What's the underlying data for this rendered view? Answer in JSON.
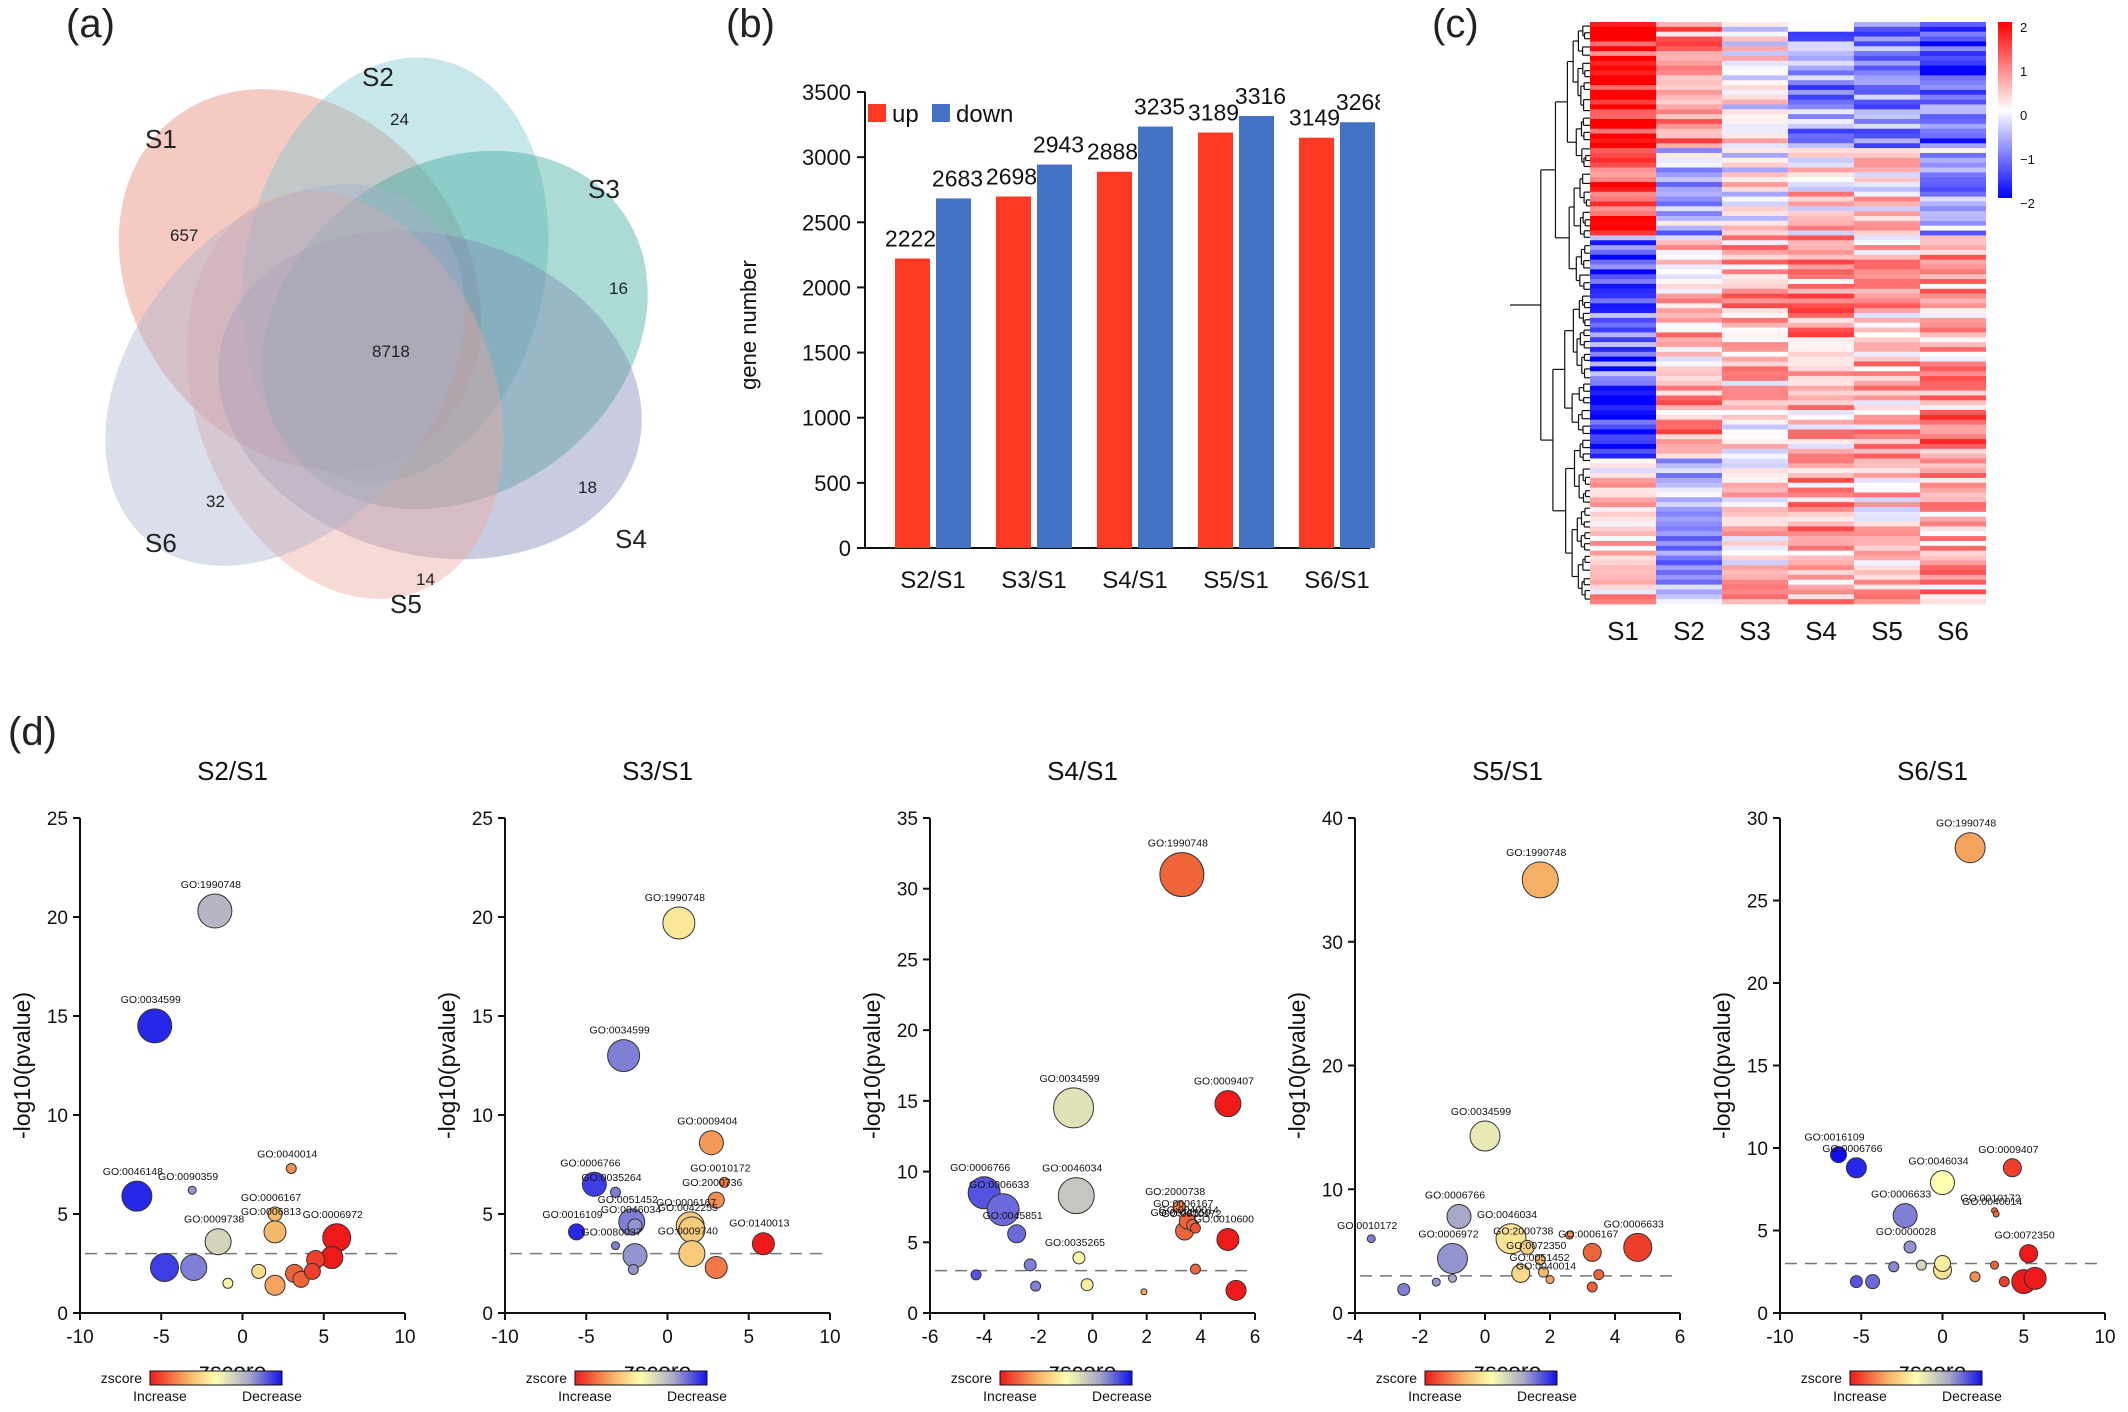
{
  "panel_labels": {
    "a": "(a)",
    "b": "(b)",
    "c": "(c)",
    "d": "(d)"
  },
  "venn": {
    "sets": [
      "S1",
      "S2",
      "S3",
      "S4",
      "S5",
      "S6"
    ],
    "colors": [
      "#e8806f",
      "#7cc6d0",
      "#3aa99a",
      "#7f86b5",
      "#eca89a",
      "#aab0cf"
    ],
    "counts": {
      "S1_only": "657",
      "S2_only": "24",
      "S3_only": "16",
      "S4_only": "18",
      "S5_only": "14",
      "S6_only": "32",
      "all": "8718"
    }
  },
  "bar": {
    "ylabel": "gene number",
    "legend_up": "up",
    "legend_down": "down",
    "color_up": "#ff3a24",
    "color_down": "#4472c4"
  },
  "heatmap": {
    "columns": [
      "S1",
      "S2",
      "S3",
      "S4",
      "S5",
      "S6"
    ],
    "legend_ticks": [
      "2",
      "1",
      "0",
      "−1",
      "−2"
    ],
    "color_high": "#ff0000",
    "color_mid": "#ffffff",
    "color_low": "#0000ff"
  },
  "colorbar": {
    "label": "zscore",
    "left": "Increase",
    "right": "Decrease"
  },
  "chart_data": [
    {
      "type": "bar",
      "title": "",
      "ylabel": "gene number",
      "categories": [
        "S2/S1",
        "S3/S1",
        "S4/S1",
        "S5/S1",
        "S6/S1"
      ],
      "series": [
        {
          "name": "up",
          "values": [
            2222,
            2698,
            2888,
            3189,
            3149
          ]
        },
        {
          "name": "down",
          "values": [
            2683,
            2943,
            3235,
            3316,
            3268
          ]
        }
      ],
      "ylim": [
        0,
        3500
      ],
      "yticks": [
        0,
        500,
        1000,
        1500,
        2000,
        2500,
        3000,
        3500
      ]
    },
    {
      "type": "scatter",
      "title": "S2/S1",
      "xlabel": "zscore",
      "ylabel": "-log10(pvalue)",
      "xlim": [
        -10,
        10
      ],
      "ylim": [
        0,
        25
      ],
      "xticks": [
        -10,
        -5,
        0,
        5,
        10
      ],
      "yticks": [
        0,
        5,
        10,
        15,
        20,
        25
      ],
      "threshold": 3,
      "points": [
        {
          "x": -1.7,
          "y": 20.3,
          "z": -1.7,
          "s": 17,
          "label": "GO:1990748"
        },
        {
          "x": -5.4,
          "y": 14.5,
          "z": -8.0,
          "s": 17,
          "label": "GO:0034599"
        },
        {
          "x": -6.5,
          "y": 5.9,
          "z": -8.0,
          "s": 15,
          "label": "GO:0046148"
        },
        {
          "x": -3.1,
          "y": 6.2,
          "z": -3.0,
          "s": 4,
          "label": "GO:0090359"
        },
        {
          "x": 3.0,
          "y": 7.3,
          "z": 3.0,
          "s": 5,
          "label": "GO:0040014"
        },
        {
          "x": 2.0,
          "y": 5.0,
          "z": 2.0,
          "s": 7,
          "label": "GO:0006167"
        },
        {
          "x": -1.5,
          "y": 3.6,
          "z": -1.0,
          "s": 13,
          "label": "GO:0009738"
        },
        {
          "x": 2.0,
          "y": 4.1,
          "z": 2.0,
          "s": 11,
          "label": "GO:0006813"
        },
        {
          "x": 5.8,
          "y": 3.8,
          "z": 6.0,
          "s": 14,
          "label": "GO:0006972"
        },
        {
          "x": -4.8,
          "y": 2.3,
          "z": -7.0,
          "s": 14,
          "label": ""
        },
        {
          "x": -3.0,
          "y": 2.3,
          "z": -4.0,
          "s": 13,
          "label": ""
        },
        {
          "x": -0.9,
          "y": 1.5,
          "z": 0.3,
          "s": 5,
          "label": ""
        },
        {
          "x": 1.0,
          "y": 2.1,
          "z": 1.0,
          "s": 7,
          "label": ""
        },
        {
          "x": 2.0,
          "y": 1.4,
          "z": 2.5,
          "s": 10,
          "label": ""
        },
        {
          "x": 3.2,
          "y": 2.0,
          "z": 4.0,
          "s": 9,
          "label": ""
        },
        {
          "x": 3.6,
          "y": 1.7,
          "z": 4.0,
          "s": 8,
          "label": ""
        },
        {
          "x": 4.3,
          "y": 2.1,
          "z": 5.0,
          "s": 8,
          "label": ""
        },
        {
          "x": 4.5,
          "y": 2.7,
          "z": 5.0,
          "s": 9,
          "label": ""
        },
        {
          "x": 5.5,
          "y": 2.8,
          "z": 6.0,
          "s": 11,
          "label": ""
        }
      ]
    },
    {
      "type": "scatter",
      "title": "S3/S1",
      "xlabel": "zscore",
      "ylabel": "-log10(pvalue)",
      "xlim": [
        -10,
        10
      ],
      "ylim": [
        0,
        25
      ],
      "xticks": [
        -10,
        -5,
        0,
        5,
        10
      ],
      "yticks": [
        0,
        5,
        10,
        15,
        20,
        25
      ],
      "threshold": 3,
      "points": [
        {
          "x": 0.7,
          "y": 19.7,
          "z": 0.7,
          "s": 16,
          "label": "GO:1990748"
        },
        {
          "x": -2.7,
          "y": 13.0,
          "z": -4.0,
          "s": 16,
          "label": "GO:0034599"
        },
        {
          "x": 2.7,
          "y": 8.6,
          "z": 2.7,
          "s": 12,
          "label": "GO:0009404"
        },
        {
          "x": -4.5,
          "y": 6.5,
          "z": -7.0,
          "s": 12,
          "label": "GO:0006766"
        },
        {
          "x": -3.2,
          "y": 6.1,
          "z": -4.0,
          "s": 5,
          "label": "GO:0035264"
        },
        {
          "x": -2.2,
          "y": 4.6,
          "z": -4.0,
          "s": 13,
          "label": "GO:0051452"
        },
        {
          "x": -2.0,
          "y": 4.4,
          "z": -3.0,
          "s": 7,
          "label": "GO:0046034"
        },
        {
          "x": 3.5,
          "y": 6.6,
          "z": 3.5,
          "s": 5,
          "label": "GO:0010172"
        },
        {
          "x": 3.0,
          "y": 5.7,
          "z": 3.0,
          "s": 8,
          "label": "GO:2000736"
        },
        {
          "x": -5.6,
          "y": 4.1,
          "z": -8.0,
          "s": 8,
          "label": "GO:0016109"
        },
        {
          "x": -3.2,
          "y": 3.4,
          "z": -4.0,
          "s": 4,
          "label": "GO:0080037"
        },
        {
          "x": 1.4,
          "y": 4.4,
          "z": 1.4,
          "s": 14,
          "label": "GO:0006167"
        },
        {
          "x": 1.5,
          "y": 4.2,
          "z": 1.5,
          "s": 13,
          "label": "GO:0042255"
        },
        {
          "x": 1.5,
          "y": 3.0,
          "z": 1.5,
          "s": 13,
          "label": "GO:0009740"
        },
        {
          "x": 5.9,
          "y": 3.5,
          "z": 6.0,
          "s": 11,
          "label": "GO:0140013"
        },
        {
          "x": -2.0,
          "y": 2.9,
          "z": -3.0,
          "s": 12,
          "label": ""
        },
        {
          "x": -2.1,
          "y": 2.2,
          "z": -3.0,
          "s": 5,
          "label": ""
        },
        {
          "x": 3.0,
          "y": 2.3,
          "z": 3.5,
          "s": 11,
          "label": ""
        }
      ]
    },
    {
      "type": "scatter",
      "title": "S4/S1",
      "xlabel": "zscore",
      "ylabel": "-log10(pvalue)",
      "xlim": [
        -6,
        6
      ],
      "ylim": [
        0,
        35
      ],
      "xticks": [
        -6,
        -4,
        -2,
        0,
        2,
        4,
        6
      ],
      "yticks": [
        0,
        5,
        10,
        15,
        20,
        25,
        30,
        35
      ],
      "threshold": 3,
      "points": [
        {
          "x": 3.3,
          "y": 31.0,
          "z": 4.0,
          "s": 22,
          "label": "GO:1990748"
        },
        {
          "x": -0.7,
          "y": 14.5,
          "z": -0.7,
          "s": 20,
          "label": "GO:0034599"
        },
        {
          "x": 5.0,
          "y": 14.8,
          "z": 6.0,
          "s": 13,
          "label": "GO:0009407"
        },
        {
          "x": -4.0,
          "y": 8.5,
          "z": -6.0,
          "s": 16,
          "label": "GO:0006766"
        },
        {
          "x": -3.3,
          "y": 7.3,
          "z": -5.0,
          "s": 16,
          "label": "GO:0006633"
        },
        {
          "x": -2.8,
          "y": 5.6,
          "z": -5.0,
          "s": 9,
          "label": "GO:0045851"
        },
        {
          "x": -0.6,
          "y": 8.3,
          "z": -1.3,
          "s": 18,
          "label": "GO:0046034"
        },
        {
          "x": -0.5,
          "y": 3.9,
          "z": 0.0,
          "s": 6,
          "label": "GO:0035265"
        },
        {
          "x": 3.2,
          "y": 7.5,
          "z": 3.2,
          "s": 6,
          "label": "GO:2000738"
        },
        {
          "x": 3.5,
          "y": 6.5,
          "z": 4.0,
          "s": 8,
          "label": "GO:0006167"
        },
        {
          "x": 3.7,
          "y": 6.2,
          "z": 4.0,
          "s": 6,
          "label": "GO:0040014"
        },
        {
          "x": 3.8,
          "y": 6.0,
          "z": 4.5,
          "s": 5,
          "label": "GO:0010172"
        },
        {
          "x": 3.4,
          "y": 5.8,
          "z": 4.0,
          "s": 9,
          "label": "GO:0072350"
        },
        {
          "x": 5.0,
          "y": 5.2,
          "z": 6.0,
          "s": 11,
          "label": "GO:0010600"
        },
        {
          "x": -2.3,
          "y": 3.4,
          "z": -4.0,
          "s": 6,
          "label": ""
        },
        {
          "x": -4.3,
          "y": 2.7,
          "z": -6.0,
          "s": 5,
          "label": ""
        },
        {
          "x": -2.1,
          "y": 1.9,
          "z": -4.0,
          "s": 5,
          "label": ""
        },
        {
          "x": -0.2,
          "y": 2.0,
          "z": 0.5,
          "s": 6,
          "label": ""
        },
        {
          "x": 1.9,
          "y": 1.5,
          "z": 2.5,
          "s": 3,
          "label": ""
        },
        {
          "x": 3.8,
          "y": 3.1,
          "z": 4.0,
          "s": 5,
          "label": ""
        },
        {
          "x": 5.3,
          "y": 1.6,
          "z": 6.0,
          "s": 10,
          "label": ""
        }
      ]
    },
    {
      "type": "scatter",
      "title": "S5/S1",
      "xlabel": "zscore",
      "ylabel": "-log10(pvalue)",
      "xlim": [
        -4,
        6
      ],
      "ylim": [
        0,
        40
      ],
      "xticks": [
        -4,
        -2,
        0,
        2,
        4,
        6
      ],
      "yticks": [
        0,
        10,
        20,
        30,
        40
      ],
      "threshold": 3,
      "points": [
        {
          "x": 1.7,
          "y": 35.0,
          "z": 2.2,
          "s": 18,
          "label": "GO:1990748"
        },
        {
          "x": 0.0,
          "y": 14.3,
          "z": -0.5,
          "s": 15,
          "label": "GO:0034599"
        },
        {
          "x": -0.8,
          "y": 7.8,
          "z": -2.0,
          "s": 12,
          "label": "GO:0006766"
        },
        {
          "x": -1.0,
          "y": 4.4,
          "z": -3.0,
          "s": 15,
          "label": "GO:0006972"
        },
        {
          "x": -3.5,
          "y": 6.0,
          "z": -4.0,
          "s": 4,
          "label": "GO:0010172"
        },
        {
          "x": 0.8,
          "y": 6.0,
          "z": 0.8,
          "s": 15,
          "label": "GO:0046034"
        },
        {
          "x": 1.3,
          "y": 5.3,
          "z": 1.3,
          "s": 7,
          "label": "GO:2000738"
        },
        {
          "x": 1.7,
          "y": 4.3,
          "z": 1.7,
          "s": 5,
          "label": "GO:0072350"
        },
        {
          "x": 1.8,
          "y": 3.3,
          "z": 2.0,
          "s": 5,
          "label": "GO:0051452"
        },
        {
          "x": 2.0,
          "y": 2.7,
          "z": 2.5,
          "s": 4,
          "label": "GO:0040014"
        },
        {
          "x": 3.3,
          "y": 4.9,
          "z": 4.0,
          "s": 9,
          "label": "GO:0006167"
        },
        {
          "x": 4.7,
          "y": 5.3,
          "z": 5.0,
          "s": 14,
          "label": "GO:0006633"
        },
        {
          "x": -2.5,
          "y": 1.9,
          "z": -4.0,
          "s": 6,
          "label": ""
        },
        {
          "x": -1.5,
          "y": 2.5,
          "z": -3.0,
          "s": 4,
          "label": ""
        },
        {
          "x": -1.0,
          "y": 2.8,
          "z": -2.0,
          "s": 4,
          "label": ""
        },
        {
          "x": 1.1,
          "y": 3.2,
          "z": 1.1,
          "s": 9,
          "label": ""
        },
        {
          "x": 2.6,
          "y": 6.3,
          "z": 3.0,
          "s": 4,
          "label": ""
        },
        {
          "x": 3.3,
          "y": 2.1,
          "z": 4.0,
          "s": 5,
          "label": ""
        },
        {
          "x": 3.5,
          "y": 3.1,
          "z": 4.0,
          "s": 5,
          "label": ""
        }
      ]
    },
    {
      "type": "scatter",
      "title": "S6/S1",
      "xlabel": "zscore",
      "ylabel": "-log10(pvalue)",
      "xlim": [
        -10,
        10
      ],
      "ylim": [
        0,
        30
      ],
      "xticks": [
        -10,
        -5,
        0,
        5,
        10
      ],
      "yticks": [
        0,
        5,
        10,
        15,
        20,
        25,
        30
      ],
      "threshold": 3,
      "points": [
        {
          "x": 1.7,
          "y": 28.2,
          "z": 2.5,
          "s": 15,
          "label": "GO:1990748"
        },
        {
          "x": -6.4,
          "y": 9.6,
          "z": -9.0,
          "s": 8,
          "label": "GO:0016109"
        },
        {
          "x": -5.3,
          "y": 8.8,
          "z": -8.0,
          "s": 10,
          "label": "GO:0006766"
        },
        {
          "x": 4.3,
          "y": 8.8,
          "z": 5.0,
          "s": 9,
          "label": "GO:0009407"
        },
        {
          "x": 0.0,
          "y": 7.9,
          "z": 0.0,
          "s": 12,
          "label": "GO:0046034"
        },
        {
          "x": -2.3,
          "y": 5.9,
          "z": -4.0,
          "s": 12,
          "label": "GO:0006633"
        },
        {
          "x": 3.2,
          "y": 6.2,
          "z": 4.0,
          "s": 3,
          "label": "GO:0010172"
        },
        {
          "x": 3.3,
          "y": 6.0,
          "z": 4.0,
          "s": 3,
          "label": "GO:0040014"
        },
        {
          "x": -2.0,
          "y": 4.0,
          "z": -3.0,
          "s": 6,
          "label": "GO:0000028"
        },
        {
          "x": 5.3,
          "y": 3.6,
          "z": 6.0,
          "s": 9,
          "label": "GO:0072350"
        },
        {
          "x": -3.0,
          "y": 2.8,
          "z": -3.5,
          "s": 5,
          "label": ""
        },
        {
          "x": -1.3,
          "y": 2.9,
          "z": -1.0,
          "s": 5,
          "label": ""
        },
        {
          "x": -5.3,
          "y": 1.9,
          "z": -6.0,
          "s": 6,
          "label": ""
        },
        {
          "x": -4.3,
          "y": 1.9,
          "z": -5.0,
          "s": 7,
          "label": ""
        },
        {
          "x": 0.0,
          "y": 3.0,
          "z": 0.5,
          "s": 8,
          "label": ""
        },
        {
          "x": 0.0,
          "y": 2.6,
          "z": 0.8,
          "s": 9,
          "label": ""
        },
        {
          "x": 2.0,
          "y": 2.2,
          "z": 3.0,
          "s": 5,
          "label": ""
        },
        {
          "x": 3.2,
          "y": 2.9,
          "z": 4.0,
          "s": 4,
          "label": ""
        },
        {
          "x": 3.8,
          "y": 1.9,
          "z": 5.0,
          "s": 5,
          "label": ""
        },
        {
          "x": 5.0,
          "y": 1.9,
          "z": 6.0,
          "s": 12,
          "label": ""
        },
        {
          "x": 5.7,
          "y": 2.1,
          "z": 6.0,
          "s": 11,
          "label": ""
        }
      ]
    }
  ]
}
